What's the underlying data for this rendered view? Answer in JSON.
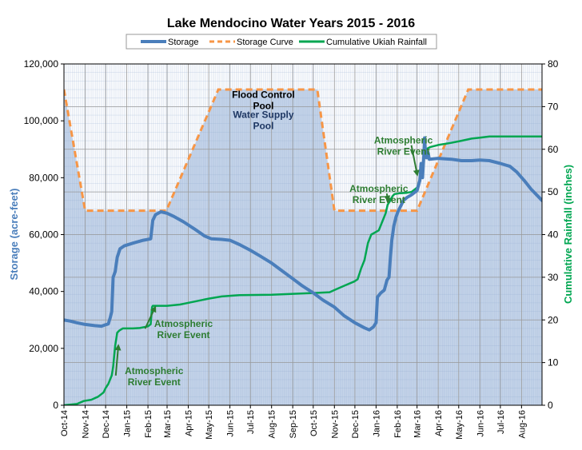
{
  "chart_data": {
    "type": "line",
    "title": "Lake Mendocino Water Years 2015 - 2016",
    "ylabel": "Storage (acre-feet)",
    "y2label": "Cumulative Rainfall (inches)",
    "ylim": [
      0,
      120000
    ],
    "y2lim": [
      0,
      80
    ],
    "xlim": [
      "2014-10-01",
      "2016-08-31"
    ],
    "yticks": [
      "0",
      "20,000",
      "40,000",
      "60,000",
      "80,000",
      "100,000",
      "120,000"
    ],
    "y2ticks": [
      "0",
      "10",
      "20",
      "30",
      "40",
      "50",
      "60",
      "70",
      "80"
    ],
    "xticks": [
      {
        "label": "Oct-14",
        "date": "2014-10-01"
      },
      {
        "label": "Nov-14",
        "date": "2014-11-01"
      },
      {
        "label": "Dec-14",
        "date": "2014-12-01"
      },
      {
        "label": "Jan-15",
        "date": "2015-01-01"
      },
      {
        "label": "Feb-15",
        "date": "2015-02-01"
      },
      {
        "label": "Mar-15",
        "date": "2015-03-01"
      },
      {
        "label": "Apr-15",
        "date": "2015-04-01"
      },
      {
        "label": "May-15",
        "date": "2015-05-01"
      },
      {
        "label": "Jun-15",
        "date": "2015-06-01"
      },
      {
        "label": "Jul-15",
        "date": "2015-07-01"
      },
      {
        "label": "Aug-15",
        "date": "2015-08-01"
      },
      {
        "label": "Sep-15",
        "date": "2015-09-01"
      },
      {
        "label": "Oct-15",
        "date": "2015-10-01"
      },
      {
        "label": "Nov-15",
        "date": "2015-11-01"
      },
      {
        "label": "Dec-15",
        "date": "2015-12-01"
      },
      {
        "label": "Jan-16",
        "date": "2016-01-01"
      },
      {
        "label": "Feb-16",
        "date": "2016-02-01"
      },
      {
        "label": "Mar-16",
        "date": "2016-03-01"
      },
      {
        "label": "Apr-16",
        "date": "2016-04-01"
      },
      {
        "label": "May-16",
        "date": "2016-05-01"
      },
      {
        "label": "Jun-16",
        "date": "2016-06-01"
      },
      {
        "label": "Jul-16",
        "date": "2016-07-01"
      },
      {
        "label": "Aug-16",
        "date": "2016-08-01"
      }
    ],
    "legend": {
      "position": "top"
    },
    "grid": true,
    "series": [
      {
        "name": "Storage",
        "axis": "left",
        "color": "#4a7ebb",
        "style": "solid",
        "points": [
          [
            "2014-10-01",
            30000
          ],
          [
            "2014-10-10",
            29600
          ],
          [
            "2014-10-20",
            29000
          ],
          [
            "2014-11-01",
            28400
          ],
          [
            "2014-11-15",
            28000
          ],
          [
            "2014-11-25",
            27800
          ],
          [
            "2014-12-01",
            28300
          ],
          [
            "2014-12-05",
            28600
          ],
          [
            "2014-12-08",
            31000
          ],
          [
            "2014-12-10",
            33000
          ],
          [
            "2014-12-12",
            45000
          ],
          [
            "2014-12-15",
            47000
          ],
          [
            "2014-12-18",
            52000
          ],
          [
            "2014-12-22",
            55000
          ],
          [
            "2014-12-28",
            56000
          ],
          [
            "2015-01-10",
            57000
          ],
          [
            "2015-01-25",
            58000
          ],
          [
            "2015-02-05",
            58500
          ],
          [
            "2015-02-08",
            65000
          ],
          [
            "2015-02-12",
            67000
          ],
          [
            "2015-02-20",
            68000
          ],
          [
            "2015-03-01",
            67500
          ],
          [
            "2015-03-10",
            66500
          ],
          [
            "2015-03-25",
            64500
          ],
          [
            "2015-04-10",
            62000
          ],
          [
            "2015-04-25",
            59500
          ],
          [
            "2015-05-05",
            58500
          ],
          [
            "2015-05-20",
            58300
          ],
          [
            "2015-06-01",
            58000
          ],
          [
            "2015-06-15",
            56500
          ],
          [
            "2015-07-01",
            54500
          ],
          [
            "2015-07-15",
            52500
          ],
          [
            "2015-08-01",
            50000
          ],
          [
            "2015-08-15",
            47500
          ],
          [
            "2015-09-01",
            44500
          ],
          [
            "2015-09-15",
            42000
          ],
          [
            "2015-10-01",
            39500
          ],
          [
            "2015-10-15",
            37000
          ],
          [
            "2015-11-01",
            34500
          ],
          [
            "2015-11-15",
            31500
          ],
          [
            "2015-12-01",
            29000
          ],
          [
            "2015-12-15",
            27200
          ],
          [
            "2015-12-22",
            26500
          ],
          [
            "2015-12-28",
            27500
          ],
          [
            "2016-01-01",
            29000
          ],
          [
            "2016-01-03",
            38000
          ],
          [
            "2016-01-08",
            39500
          ],
          [
            "2016-01-13",
            40500
          ],
          [
            "2016-01-17",
            44000
          ],
          [
            "2016-01-20",
            45000
          ],
          [
            "2016-01-22",
            52000
          ],
          [
            "2016-01-24",
            58000
          ],
          [
            "2016-01-27",
            63000
          ],
          [
            "2016-01-30",
            66000
          ],
          [
            "2016-02-02",
            68000
          ],
          [
            "2016-02-06",
            70000
          ],
          [
            "2016-02-10",
            72000
          ],
          [
            "2016-02-15",
            73000
          ],
          [
            "2016-02-22",
            74000
          ],
          [
            "2016-03-01",
            75500
          ],
          [
            "2016-03-05",
            79000
          ],
          [
            "2016-03-07",
            85000
          ],
          [
            "2016-03-09",
            80000
          ],
          [
            "2016-03-11",
            88000
          ],
          [
            "2016-03-12",
            94000
          ],
          [
            "2016-03-13",
            90000
          ],
          [
            "2016-03-15",
            87000
          ],
          [
            "2016-03-17",
            89000
          ],
          [
            "2016-03-19",
            86500
          ],
          [
            "2016-04-01",
            86800
          ],
          [
            "2016-04-20",
            86500
          ],
          [
            "2016-05-05",
            86000
          ],
          [
            "2016-05-20",
            86000
          ],
          [
            "2016-06-01",
            86200
          ],
          [
            "2016-06-15",
            86000
          ],
          [
            "2016-07-01",
            85000
          ],
          [
            "2016-07-15",
            84000
          ],
          [
            "2016-07-25",
            82000
          ],
          [
            "2016-08-05",
            79000
          ],
          [
            "2016-08-15",
            76000
          ],
          [
            "2016-08-31",
            72000
          ]
        ]
      },
      {
        "name": "Storage Curve",
        "axis": "left",
        "color": "#f79646",
        "style": "dashed",
        "points": [
          [
            "2014-10-01",
            111000
          ],
          [
            "2014-11-01",
            68400
          ],
          [
            "2015-02-28",
            68400
          ],
          [
            "2015-05-15",
            111000
          ],
          [
            "2015-10-07",
            111000
          ],
          [
            "2015-11-01",
            68400
          ],
          [
            "2016-03-01",
            68400
          ],
          [
            "2016-05-15",
            111000
          ],
          [
            "2016-08-31",
            111000
          ]
        ]
      },
      {
        "name": "Cumulative Ukiah Rainfall",
        "axis": "right",
        "color": "#00a651",
        "style": "solid",
        "points": [
          [
            "2014-10-01",
            0
          ],
          [
            "2014-10-20",
            0.3
          ],
          [
            "2014-10-30",
            1
          ],
          [
            "2014-11-10",
            1.3
          ],
          [
            "2014-11-20",
            2
          ],
          [
            "2014-11-28",
            3
          ],
          [
            "2014-12-01",
            4
          ],
          [
            "2014-12-05",
            5
          ],
          [
            "2014-12-10",
            7
          ],
          [
            "2014-12-12",
            9
          ],
          [
            "2014-12-15",
            14
          ],
          [
            "2014-12-18",
            17
          ],
          [
            "2014-12-21",
            17.5
          ],
          [
            "2014-12-26",
            18
          ],
          [
            "2015-01-10",
            18
          ],
          [
            "2015-01-20",
            18.1
          ],
          [
            "2015-02-01",
            18.5
          ],
          [
            "2015-02-05",
            19
          ],
          [
            "2015-02-07",
            23
          ],
          [
            "2015-02-08",
            23.3
          ],
          [
            "2015-03-01",
            23.3
          ],
          [
            "2015-03-20",
            23.6
          ],
          [
            "2015-04-10",
            24.3
          ],
          [
            "2015-05-01",
            25
          ],
          [
            "2015-05-20",
            25.5
          ],
          [
            "2015-06-15",
            25.8
          ],
          [
            "2015-08-01",
            25.9
          ],
          [
            "2015-10-01",
            26.3
          ],
          [
            "2015-10-25",
            26.5
          ],
          [
            "2015-11-01",
            27
          ],
          [
            "2015-11-15",
            28
          ],
          [
            "2015-11-30",
            29
          ],
          [
            "2015-12-05",
            29.5
          ],
          [
            "2015-12-10",
            32
          ],
          [
            "2015-12-15",
            34
          ],
          [
            "2015-12-20",
            38
          ],
          [
            "2015-12-25",
            40
          ],
          [
            "2016-01-05",
            41
          ],
          [
            "2016-01-10",
            43
          ],
          [
            "2016-01-15",
            45
          ],
          [
            "2016-01-18",
            47
          ],
          [
            "2016-01-22",
            48
          ],
          [
            "2016-01-25",
            49
          ],
          [
            "2016-01-28",
            49.5
          ],
          [
            "2016-02-05",
            49.7
          ],
          [
            "2016-02-15",
            49.8
          ],
          [
            "2016-02-22",
            50
          ],
          [
            "2016-03-01",
            51
          ],
          [
            "2016-03-05",
            53
          ],
          [
            "2016-03-08",
            55
          ],
          [
            "2016-03-10",
            57
          ],
          [
            "2016-03-12",
            59
          ],
          [
            "2016-03-14",
            60
          ],
          [
            "2016-03-20",
            60.5
          ],
          [
            "2016-04-01",
            61
          ],
          [
            "2016-04-20",
            61.5
          ],
          [
            "2016-05-05",
            62
          ],
          [
            "2016-05-20",
            62.5
          ],
          [
            "2016-06-01",
            62.7
          ],
          [
            "2016-06-15",
            63
          ],
          [
            "2016-08-31",
            63
          ]
        ]
      }
    ],
    "annotations": [
      {
        "text": [
          "Flood Control",
          "Pool"
        ],
        "x": "2015-07-20",
        "y": 108000,
        "color": "#000000"
      },
      {
        "text": [
          "Water Supply",
          "Pool"
        ],
        "x": "2015-07-20",
        "y": 101000,
        "color": "#1f3864"
      },
      {
        "text": [
          "Atmospheric",
          "River Event"
        ],
        "x": "2015-02-10",
        "y": 11000,
        "color": "#2e7d32",
        "arrow_to": [
          "2014-12-15",
          14
        ]
      },
      {
        "text": [
          "Atmospheric",
          "River Event"
        ],
        "x": "2015-03-25",
        "y": 27500,
        "color": "#2e7d32",
        "arrow_to": [
          "2015-02-07",
          23
        ]
      },
      {
        "text": [
          "Atmospheric",
          "River Event"
        ],
        "x": "2016-01-05",
        "y": 75000,
        "color": "#2e7d32",
        "arrow_to": [
          "2016-01-23",
          48
        ]
      },
      {
        "text": [
          "Atmospheric",
          "River Event"
        ],
        "x": "2016-02-10",
        "y": 92000,
        "color": "#2e7d32",
        "arrow_to": [
          "2016-03-06",
          54
        ]
      }
    ]
  }
}
